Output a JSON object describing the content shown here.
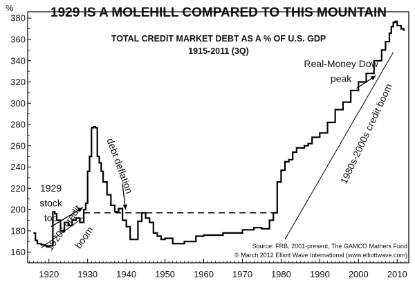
{
  "chart_data": {
    "type": "line",
    "title": "1929 IS A MOLEHILL COMPARED TO THIS MOUNTAIN",
    "subtitle": "TOTAL CREDIT MARKET DEBT AS A % OF U.S. GDP",
    "subtitle2": "1915-2011 (3Q)",
    "ylabel": "%",
    "xlabel": "",
    "xlim": [
      1914.5,
      2013
    ],
    "ylim": [
      150,
      386
    ],
    "grid": false,
    "x_ticks": [
      1920,
      1930,
      1940,
      1950,
      1960,
      1970,
      1980,
      1990,
      2000,
      2010
    ],
    "y_ticks": [
      160,
      180,
      200,
      220,
      240,
      260,
      280,
      300,
      320,
      340,
      360,
      380
    ],
    "series": [
      {
        "color": "#000000",
        "x": [
          1916,
          1916.5,
          1917,
          1918,
          1919,
          1919.5,
          1920,
          1921,
          1921.5,
          1922,
          1923,
          1924,
          1925,
          1926,
          1927,
          1928,
          1929,
          1929.5,
          1930,
          1930.5,
          1931,
          1931.5,
          1932,
          1932.5,
          1933,
          1933.5,
          1934,
          1935,
          1936,
          1937,
          1938,
          1939,
          1940,
          1941,
          1942,
          1943,
          1944,
          1945,
          1946,
          1947,
          1948,
          1949,
          1950,
          1952,
          1955,
          1958,
          1960,
          1965,
          1970,
          1973,
          1975,
          1977,
          1978,
          1979,
          1980,
          1981,
          1982,
          1983,
          1984,
          1985,
          1986,
          1987,
          1988,
          1990,
          1992,
          1994,
          1996,
          1998,
          2000,
          2002,
          2004,
          2006,
          2007,
          2008,
          2008.5,
          2009,
          2009.5,
          2010,
          2011,
          2011.7
        ],
        "y": [
          178,
          171,
          168,
          167,
          166,
          165,
          166,
          198,
          196,
          190,
          180,
          188,
          185,
          190,
          192,
          188,
          200,
          206,
          236,
          250,
          277,
          278,
          277,
          250,
          244,
          236,
          226,
          214,
          204,
          198,
          201,
          190,
          184,
          172,
          172,
          189,
          197,
          192,
          188,
          178,
          175,
          172,
          173,
          168,
          170,
          175,
          176,
          178,
          181,
          183,
          182,
          190,
          197,
          226,
          237,
          245,
          247,
          254,
          258,
          258,
          260,
          262,
          268,
          272,
          282,
          294,
          301,
          312,
          320,
          328,
          340,
          350,
          358,
          366,
          372,
          376,
          377,
          373,
          370,
          368
        ]
      }
    ],
    "reference_line": {
      "y": 197,
      "style": "dashed",
      "x_start": 1929,
      "x_end": 1979
    },
    "annotations": [
      {
        "text": "1929",
        "x": 1920.5,
        "y": 217
      },
      {
        "text": "stock",
        "x": 1920.5,
        "y": 203
      },
      {
        "text": "top",
        "x": 1920.5,
        "y": 189
      },
      {
        "text": "debt deflation",
        "x": 1937.5,
        "y": 240,
        "rotate": 70
      },
      {
        "text": "1920s credit",
        "x": 1924.5,
        "y": 181,
        "rotate": -55
      },
      {
        "text": "boom",
        "x": 1929.8,
        "y": 172,
        "rotate": -55
      },
      {
        "text": "Real-Money Dow",
        "x": 1995.5,
        "y": 334
      },
      {
        "text": "peak",
        "x": 1995.5,
        "y": 320
      },
      {
        "text": "1980s-2000s credit boom",
        "x": 2002.8,
        "y": 270,
        "rotate": -65
      }
    ],
    "arrows": [
      {
        "from": [
          1920.6,
          184
        ],
        "to": [
          1928.8,
          202
        ]
      },
      {
        "from": [
          1939,
          224
        ],
        "to": [
          1939.8,
          200
        ]
      },
      {
        "from": [
          1999.5,
          314
        ],
        "to": [
          2004.5,
          326
        ]
      }
    ],
    "trend_lines": [
      {
        "from": [
          1918,
          164
        ],
        "to": [
          1929,
          193
        ]
      },
      {
        "from": [
          1981,
          172
        ],
        "to": [
          2009,
          348
        ]
      }
    ],
    "source": [
      "Source: FRB, 2001-present, The GAMCO Mathers Fund",
      "© March 2012 Elliott Wave International (www.elliottwave.com)"
    ]
  }
}
